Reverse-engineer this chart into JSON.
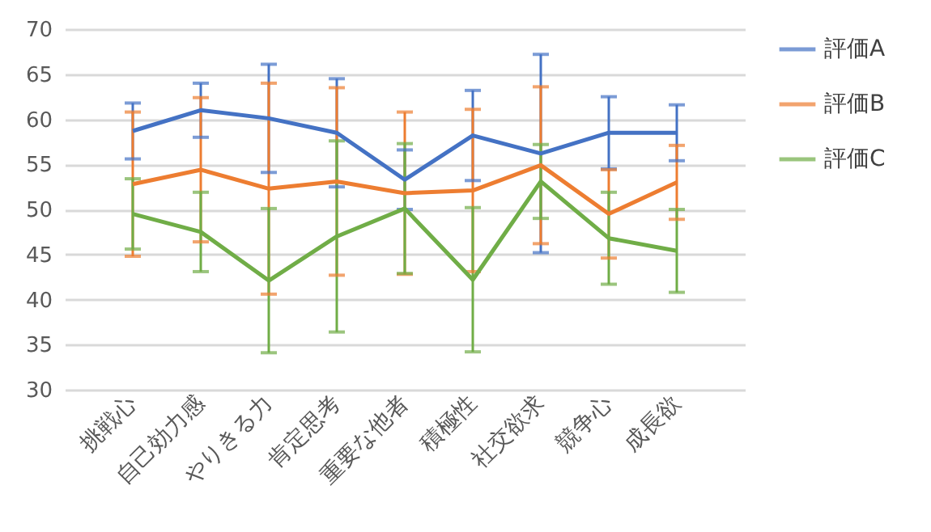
{
  "chart_data": {
    "type": "line",
    "categories": [
      "挑戦心",
      "自己効力感",
      "やりきる力",
      "肯定思考",
      "重要な他者",
      "積極性",
      "社交欲求",
      "競争心",
      "成長欲"
    ],
    "series": [
      {
        "name": "評価A",
        "color": "#4472c4",
        "values": [
          58.7,
          61,
          60.1,
          58.5,
          53.3,
          58.2,
          56.2,
          58.5,
          58.5
        ],
        "errors": [
          3.1,
          3,
          6,
          6,
          3.3,
          5,
          11,
          4,
          3.1
        ]
      },
      {
        "name": "評価B",
        "color": "#ed7d31",
        "values": [
          52.8,
          54.4,
          52.3,
          53.1,
          51.8,
          52.1,
          54.9,
          49.5,
          53
        ],
        "errors": [
          8,
          8,
          11.7,
          10.4,
          9,
          9,
          8.7,
          4.9,
          4.1
        ]
      },
      {
        "name": "評価C",
        "color": "#70ad47",
        "values": [
          49.5,
          47.5,
          42.1,
          47,
          50.1,
          42.2,
          53.1,
          46.8,
          45.4
        ],
        "errors": [
          3.9,
          4.4,
          8,
          10.6,
          7.2,
          8,
          4.1,
          5.1,
          4.6
        ]
      }
    ],
    "ylim": [
      30,
      70
    ],
    "yticks": [
      30,
      35,
      40,
      45,
      50,
      55,
      60,
      65,
      70
    ],
    "grid": "y",
    "legend": "right",
    "marker": "none",
    "line_style": "solid"
  }
}
